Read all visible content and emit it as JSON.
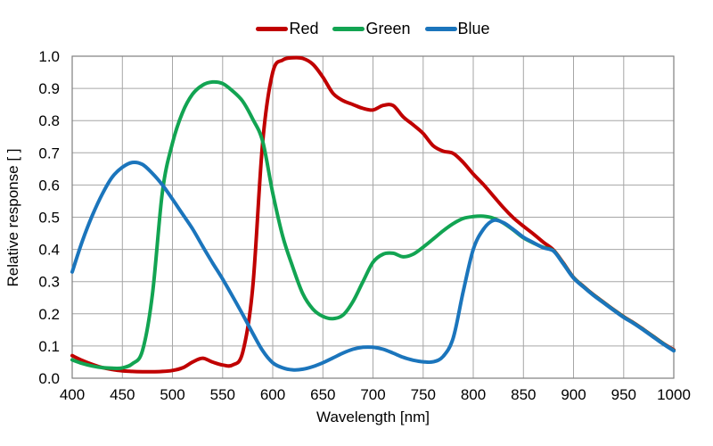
{
  "chart_data": {
    "type": "line",
    "title": "",
    "xlabel": "Wavelength [nm]",
    "ylabel": "Relative response [ ]",
    "xlim": [
      400,
      1000
    ],
    "ylim": [
      0.0,
      1.0
    ],
    "grid": true,
    "grid_color": "#A6A6A6",
    "axis_color": "#7F7F7F",
    "text_color": "#000000",
    "background": "#FFFFFF",
    "legend_position": "top-center",
    "x_tick_values": [
      400,
      450,
      500,
      550,
      600,
      650,
      700,
      750,
      800,
      850,
      900,
      950,
      1000
    ],
    "x_tick_labels": [
      "400",
      "450",
      "500",
      "550",
      "600",
      "650",
      "700",
      "750",
      "800",
      "850",
      "900",
      "950",
      "1000"
    ],
    "y_tick_values": [
      0.0,
      0.1,
      0.2,
      0.3,
      0.4,
      0.5,
      0.6,
      0.7,
      0.8,
      0.9,
      1.0
    ],
    "y_tick_labels": [
      "0.0",
      "0.1",
      "0.2",
      "0.3",
      "0.4",
      "0.5",
      "0.6",
      "0.7",
      "0.8",
      "0.9",
      "1.0"
    ],
    "x": [
      400,
      410,
      420,
      430,
      440,
      450,
      460,
      470,
      480,
      490,
      500,
      510,
      520,
      530,
      540,
      550,
      560,
      570,
      580,
      590,
      600,
      610,
      620,
      630,
      640,
      650,
      660,
      670,
      680,
      690,
      700,
      710,
      720,
      730,
      740,
      750,
      760,
      770,
      780,
      790,
      800,
      810,
      820,
      830,
      840,
      850,
      860,
      870,
      880,
      890,
      900,
      910,
      920,
      930,
      940,
      950,
      960,
      970,
      980,
      990,
      1000
    ],
    "series": [
      {
        "name": "Red",
        "color": "#C00000",
        "values": [
          0.07,
          0.055,
          0.043,
          0.033,
          0.027,
          0.023,
          0.021,
          0.02,
          0.02,
          0.021,
          0.024,
          0.032,
          0.05,
          0.062,
          0.05,
          0.041,
          0.041,
          0.08,
          0.28,
          0.735,
          0.95,
          0.988,
          0.995,
          0.993,
          0.975,
          0.935,
          0.885,
          0.862,
          0.85,
          0.838,
          0.833,
          0.847,
          0.847,
          0.812,
          0.787,
          0.76,
          0.722,
          0.705,
          0.698,
          0.67,
          0.634,
          0.602,
          0.566,
          0.53,
          0.498,
          0.472,
          0.448,
          0.422,
          0.398,
          0.357,
          0.313,
          0.285,
          0.259,
          0.236,
          0.213,
          0.191,
          0.172,
          0.151,
          0.129,
          0.107,
          0.088
        ]
      },
      {
        "name": "Green",
        "color": "#12A452",
        "values": [
          0.057,
          0.046,
          0.038,
          0.033,
          0.031,
          0.032,
          0.045,
          0.085,
          0.26,
          0.58,
          0.73,
          0.825,
          0.882,
          0.91,
          0.92,
          0.915,
          0.892,
          0.86,
          0.805,
          0.735,
          0.575,
          0.44,
          0.345,
          0.262,
          0.215,
          0.192,
          0.185,
          0.196,
          0.238,
          0.3,
          0.36,
          0.385,
          0.388,
          0.377,
          0.385,
          0.407,
          0.432,
          0.458,
          0.48,
          0.496,
          0.502,
          0.503,
          0.497,
          0.482,
          0.46,
          0.436,
          0.42,
          0.406,
          0.396,
          0.355,
          0.312,
          0.284,
          0.258,
          0.235,
          0.212,
          0.19,
          0.171,
          0.15,
          0.128,
          0.106,
          0.086
        ]
      },
      {
        "name": "Blue",
        "color": "#1B75BC",
        "values": [
          0.33,
          0.425,
          0.505,
          0.572,
          0.625,
          0.655,
          0.67,
          0.664,
          0.636,
          0.6,
          0.556,
          0.51,
          0.464,
          0.41,
          0.358,
          0.308,
          0.254,
          0.198,
          0.14,
          0.085,
          0.048,
          0.032,
          0.026,
          0.028,
          0.036,
          0.048,
          0.063,
          0.078,
          0.09,
          0.096,
          0.096,
          0.09,
          0.078,
          0.065,
          0.056,
          0.051,
          0.051,
          0.068,
          0.125,
          0.27,
          0.4,
          0.462,
          0.49,
          0.483,
          0.462,
          0.438,
          0.421,
          0.405,
          0.395,
          0.354,
          0.311,
          0.283,
          0.257,
          0.234,
          0.211,
          0.189,
          0.17,
          0.149,
          0.127,
          0.105,
          0.085
        ]
      }
    ]
  }
}
